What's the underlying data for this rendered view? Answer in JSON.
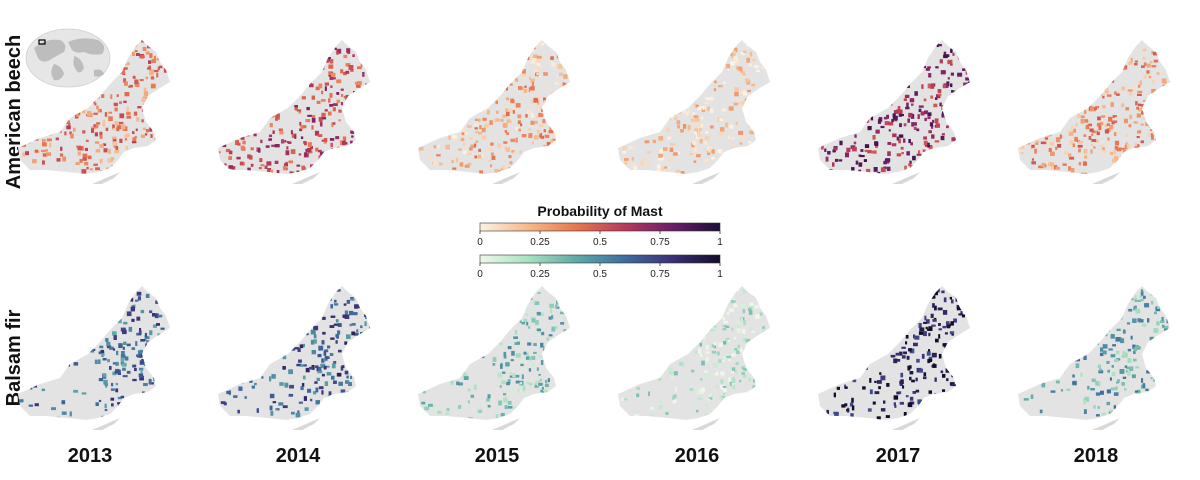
{
  "figure": {
    "row_labels": [
      "American beech",
      "Balsam fir"
    ],
    "years": [
      "2013",
      "2014",
      "2015",
      "2016",
      "2017",
      "2018"
    ],
    "legend": {
      "title": "Probability of Mast",
      "ticks": [
        "0",
        "0.25",
        "0.5",
        "0.75",
        "1"
      ],
      "ramps": [
        {
          "for": "American beech",
          "colors": [
            "#fdf2e3",
            "#f6b98a",
            "#e8764e",
            "#b83a5a",
            "#6a1d6b",
            "#1a0f33"
          ]
        },
        {
          "for": "Balsam fir",
          "colors": [
            "#eef8e8",
            "#a9e1c1",
            "#5ea9a8",
            "#3f6e9e",
            "#3c2f78",
            "#140d28"
          ]
        }
      ]
    },
    "maps": {
      "region_fill": "#e3e3e3",
      "inset_globe": "world-locator-icon",
      "beech_intensity": [
        0.38,
        0.55,
        0.22,
        0.1,
        0.7,
        0.3
      ],
      "fir_intensity": [
        0.6,
        0.65,
        0.3,
        0.12,
        0.9,
        0.4
      ]
    }
  }
}
